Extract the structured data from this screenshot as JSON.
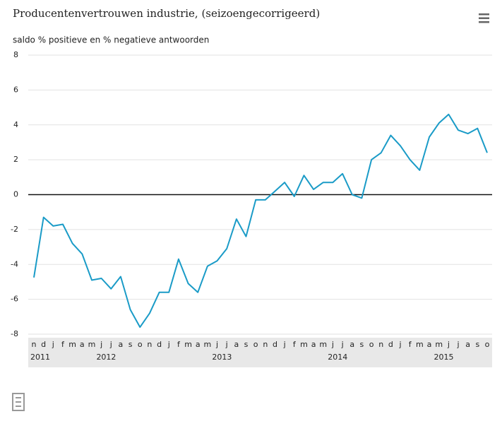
{
  "chart_data": {
    "type": "line",
    "title": "Producentenvertrouwen industrie, (seizoengecorrigeerd)",
    "subtitle": "saldo % positieve en % negatieve antwoorden",
    "categories": [
      "n",
      "d",
      "j",
      "f",
      "m",
      "a",
      "m",
      "j",
      "j",
      "a",
      "s",
      "o",
      "n",
      "d",
      "j",
      "f",
      "m",
      "a",
      "m",
      "j",
      "j",
      "a",
      "s",
      "o",
      "n",
      "d",
      "j",
      "f",
      "m",
      "a",
      "m",
      "j",
      "j",
      "a",
      "s",
      "o",
      "n",
      "d",
      "j",
      "f",
      "m",
      "a",
      "m",
      "j",
      "j",
      "a",
      "s",
      "o"
    ],
    "years": [
      "2011",
      "2012",
      "2013",
      "2014",
      "2015"
    ],
    "series": [
      {
        "name": "Producentenvertrouwen",
        "color": "#1a9bc7",
        "values": [
          -4.75,
          -1.3,
          -1.8,
          -1.7,
          -2.8,
          -3.4,
          -4.9,
          -4.8,
          -5.4,
          -4.7,
          -6.6,
          -7.6,
          -6.8,
          -5.6,
          -5.6,
          -3.7,
          -5.1,
          -5.6,
          -4.1,
          -3.8,
          -3.1,
          -1.4,
          -2.4,
          -0.3,
          -0.3,
          0.2,
          0.7,
          -0.1,
          1.1,
          0.3,
          0.7,
          0.7,
          1.2,
          0.0,
          -0.2,
          2.0,
          2.4,
          3.4,
          2.8,
          2.0,
          1.4,
          3.3,
          4.1,
          4.6,
          3.7,
          3.5,
          3.8,
          2.4
        ]
      }
    ],
    "ylim": [
      -8,
      8
    ],
    "yticks": [
      -8,
      -6,
      -4,
      -2,
      0,
      2,
      4,
      6,
      8
    ],
    "grid": true
  }
}
